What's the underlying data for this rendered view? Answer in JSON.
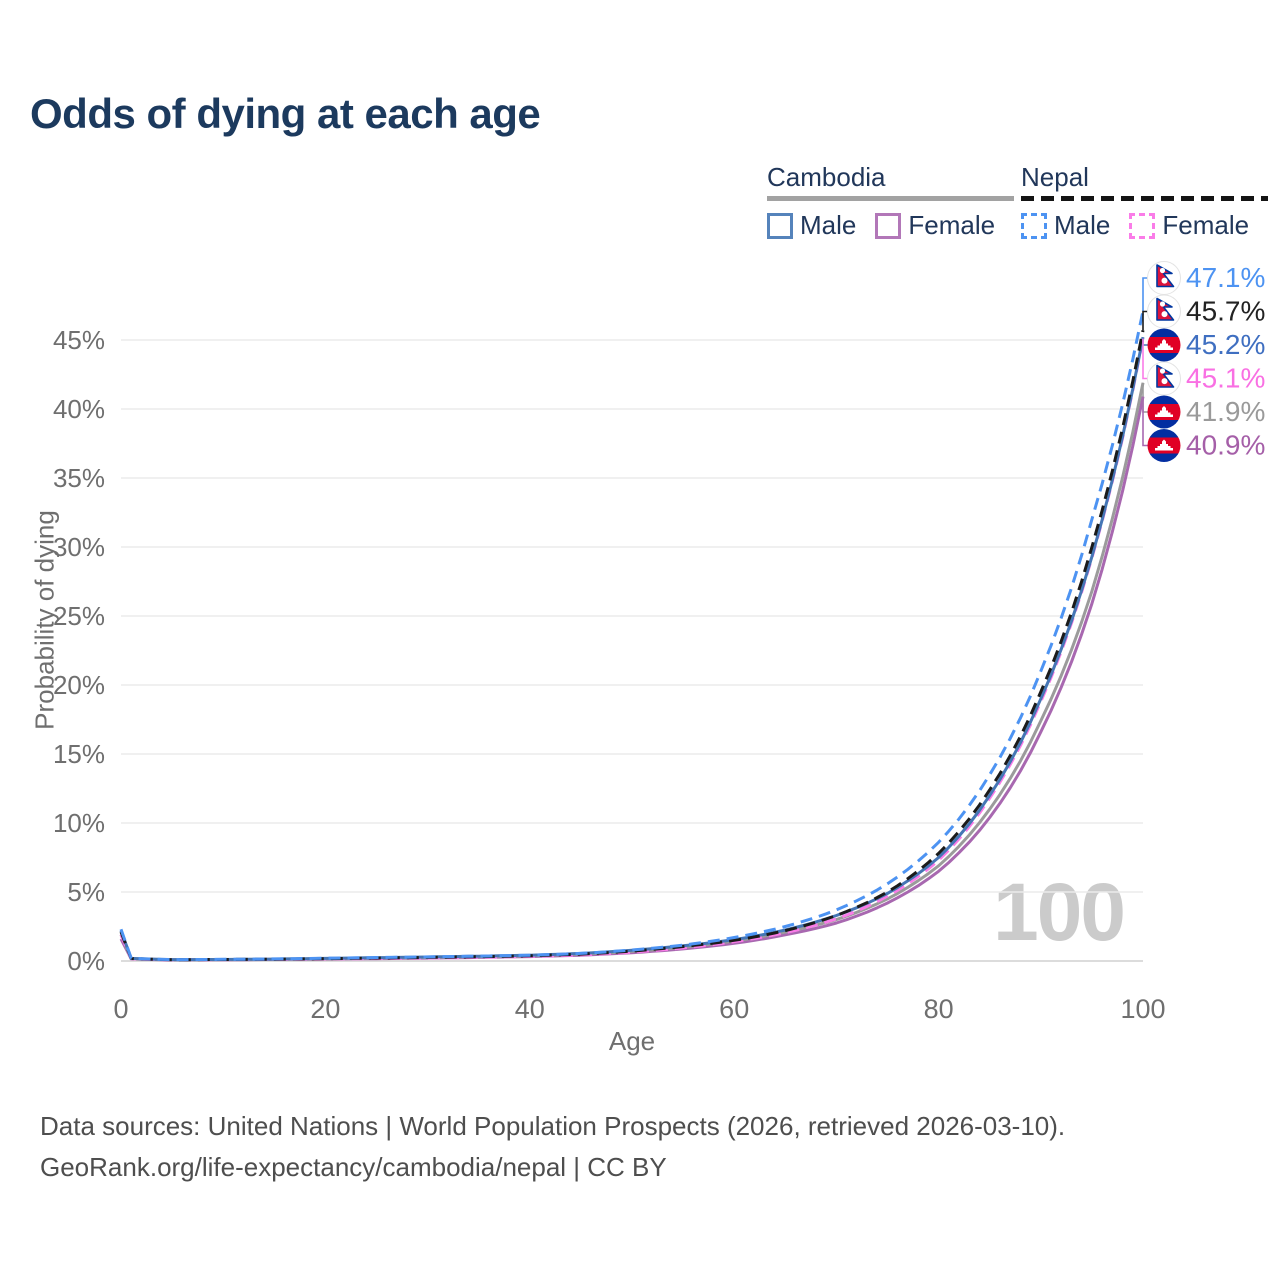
{
  "page": {
    "title": "Odds of dying at each age"
  },
  "legend": {
    "cambodia": {
      "label": "Cambodia",
      "male_label": "Male",
      "female_label": "Female",
      "male_color": "#5583bb",
      "female_color": "#b277b8",
      "underline_color": "#a2a2a2",
      "underline_style": "solid",
      "line_style": "solid"
    },
    "nepal": {
      "label": "Nepal",
      "male_label": "Male",
      "female_label": "Female",
      "male_color": "#4d93f2",
      "female_color": "#fa7ce8",
      "underline_color": "#141414",
      "underline_style": "dashed",
      "line_style": "dashed"
    }
  },
  "axes": {
    "x_title": "Age",
    "y_title": "Probability of dying",
    "tick_color": "#6f6f6f",
    "grid_color": "#ebebeb",
    "baseline_color": "#dcdcdc"
  },
  "watermark": "100",
  "footer": {
    "line1": "Data sources: United Nations | World Population Prospects (2026, retrieved 2026-03-10).",
    "line2": "GeoRank.org/life-expectancy/cambodia/nepal | CC BY"
  },
  "flag_colors": {
    "nepal_crimson": "#dc143c",
    "nepal_blue": "#0036a0",
    "cambodia_blue": "#032ea1",
    "cambodia_red": "#e00025"
  },
  "chart_data": {
    "type": "line",
    "title": "Odds of dying at each age",
    "xlabel": "Age",
    "ylabel": "Probability of dying",
    "xlim": [
      0,
      100
    ],
    "ylim_pct": [
      0,
      47.5
    ],
    "x_ticks": [
      0,
      20,
      40,
      60,
      80,
      100
    ],
    "y_ticks_pct": [
      0,
      5,
      10,
      15,
      20,
      25,
      30,
      35,
      40,
      45
    ],
    "grid": "horizontal-only",
    "legend_position": "top-right",
    "age_counter_watermark": "100",
    "x": [
      0,
      1,
      5,
      10,
      15,
      20,
      25,
      30,
      35,
      40,
      45,
      50,
      55,
      60,
      65,
      70,
      75,
      80,
      85,
      90,
      95,
      100
    ],
    "series": [
      {
        "name": "Nepal Male",
        "country": "Nepal",
        "sex": "Male",
        "flag": "nepal",
        "style": "dashed",
        "color": "#4d93f2",
        "label_color": "#4d93f2",
        "end_label": "47.1%",
        "end_value_pct": 47.1,
        "values": [
          2.3,
          0.2,
          0.1,
          0.12,
          0.15,
          0.2,
          0.25,
          0.3,
          0.35,
          0.42,
          0.55,
          0.8,
          1.15,
          1.7,
          2.5,
          3.7,
          5.6,
          8.6,
          13.5,
          21.0,
          32.0,
          47.1
        ]
      },
      {
        "name": "Nepal Both sexes",
        "country": "Nepal",
        "sex": "Both",
        "flag": "nepal",
        "style": "dashed",
        "color": "#1b1b1b",
        "label_color": "#222222",
        "end_label": "45.7%",
        "end_value_pct": 45.7,
        "values": [
          2.1,
          0.18,
          0.09,
          0.11,
          0.13,
          0.17,
          0.21,
          0.26,
          0.31,
          0.38,
          0.5,
          0.72,
          1.05,
          1.5,
          2.2,
          3.3,
          5.0,
          7.8,
          12.4,
          19.5,
          30.0,
          45.7
        ]
      },
      {
        "name": "Cambodia Male",
        "country": "Cambodia",
        "sex": "Male",
        "flag": "cambodia",
        "style": "solid",
        "color": "#4576b5",
        "label_color": "#3f6fc1",
        "end_label": "45.2%",
        "end_value_pct": 45.2,
        "values": [
          2.2,
          0.19,
          0.1,
          0.11,
          0.14,
          0.19,
          0.24,
          0.29,
          0.35,
          0.42,
          0.55,
          0.78,
          1.1,
          1.55,
          2.25,
          3.3,
          4.9,
          7.5,
          12.0,
          19.0,
          29.3,
          45.2
        ]
      },
      {
        "name": "Nepal Female",
        "country": "Nepal",
        "sex": "Female",
        "flag": "nepal",
        "style": "dashed",
        "color": "#fa7ce8",
        "label_color": "#f970e3",
        "end_label": "45.1%",
        "end_value_pct": 45.1,
        "values": [
          1.9,
          0.16,
          0.08,
          0.1,
          0.12,
          0.15,
          0.18,
          0.22,
          0.27,
          0.33,
          0.44,
          0.64,
          0.95,
          1.4,
          2.05,
          3.05,
          4.7,
          7.3,
          11.8,
          18.8,
          29.2,
          45.1
        ]
      },
      {
        "name": "Cambodia Both sexes",
        "country": "Cambodia",
        "sex": "Both",
        "flag": "cambodia",
        "style": "solid",
        "color": "#9b9b9b",
        "label_color": "#9a9a9a",
        "end_label": "41.9%",
        "end_value_pct": 41.9,
        "values": [
          1.9,
          0.17,
          0.09,
          0.1,
          0.13,
          0.17,
          0.21,
          0.26,
          0.31,
          0.38,
          0.5,
          0.7,
          1.0,
          1.45,
          2.1,
          3.0,
          4.5,
          6.9,
          11.0,
          17.4,
          26.8,
          41.9
        ]
      },
      {
        "name": "Cambodia Female",
        "country": "Cambodia",
        "sex": "Female",
        "flag": "cambodia",
        "style": "solid",
        "color": "#a868b0",
        "label_color": "#a55fa8",
        "end_label": "40.9%",
        "end_value_pct": 40.9,
        "values": [
          1.6,
          0.15,
          0.08,
          0.09,
          0.11,
          0.14,
          0.17,
          0.21,
          0.26,
          0.32,
          0.42,
          0.6,
          0.88,
          1.28,
          1.9,
          2.75,
          4.2,
          6.5,
          10.4,
          16.6,
          25.9,
          40.9
        ]
      }
    ]
  }
}
